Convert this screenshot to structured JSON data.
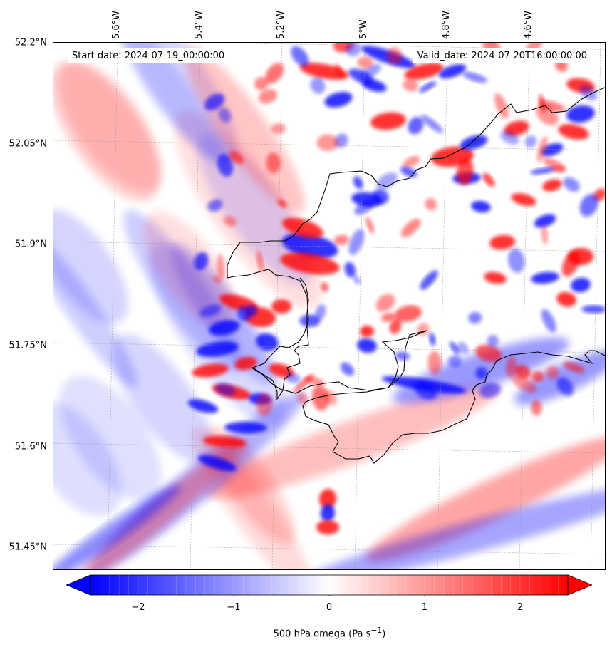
{
  "map": {
    "variable": "500 hPa omega",
    "units_html": "(Pa s<sup>−1</sup>)",
    "start_label": "Start date: 2024-07-19_00:00:00",
    "valid_label": "Valid_date: 2024-07-20T16:00:00.00",
    "lat_ticks": [
      "52.2°N",
      "52.05°N",
      "51.9°N",
      "51.75°N",
      "51.6°N",
      "51.45°N"
    ],
    "lon_ticks": [
      "5.6°W",
      "5.4°W",
      "5.2°W",
      "5°W",
      "4.8°W",
      "4.6°W"
    ],
    "extent": {
      "lon_min": -5.74,
      "lon_max": -4.42,
      "lat_min": 51.415,
      "lat_max": 52.2
    },
    "coastline_color": "#000000"
  },
  "colorbar": {
    "min": -2.5,
    "max": 2.5,
    "extend": "both",
    "ticks": [
      -2,
      -1,
      0,
      1,
      2
    ],
    "tick_labels": [
      "−2",
      "−1",
      "0",
      "1",
      "2"
    ],
    "colormap": "bwr",
    "colors": {
      "low": "#0000ff",
      "mid": "#ffffff",
      "high": "#ff0000"
    },
    "label": "500 hPa omega (Pa s<sup>−1</sup>)"
  }
}
